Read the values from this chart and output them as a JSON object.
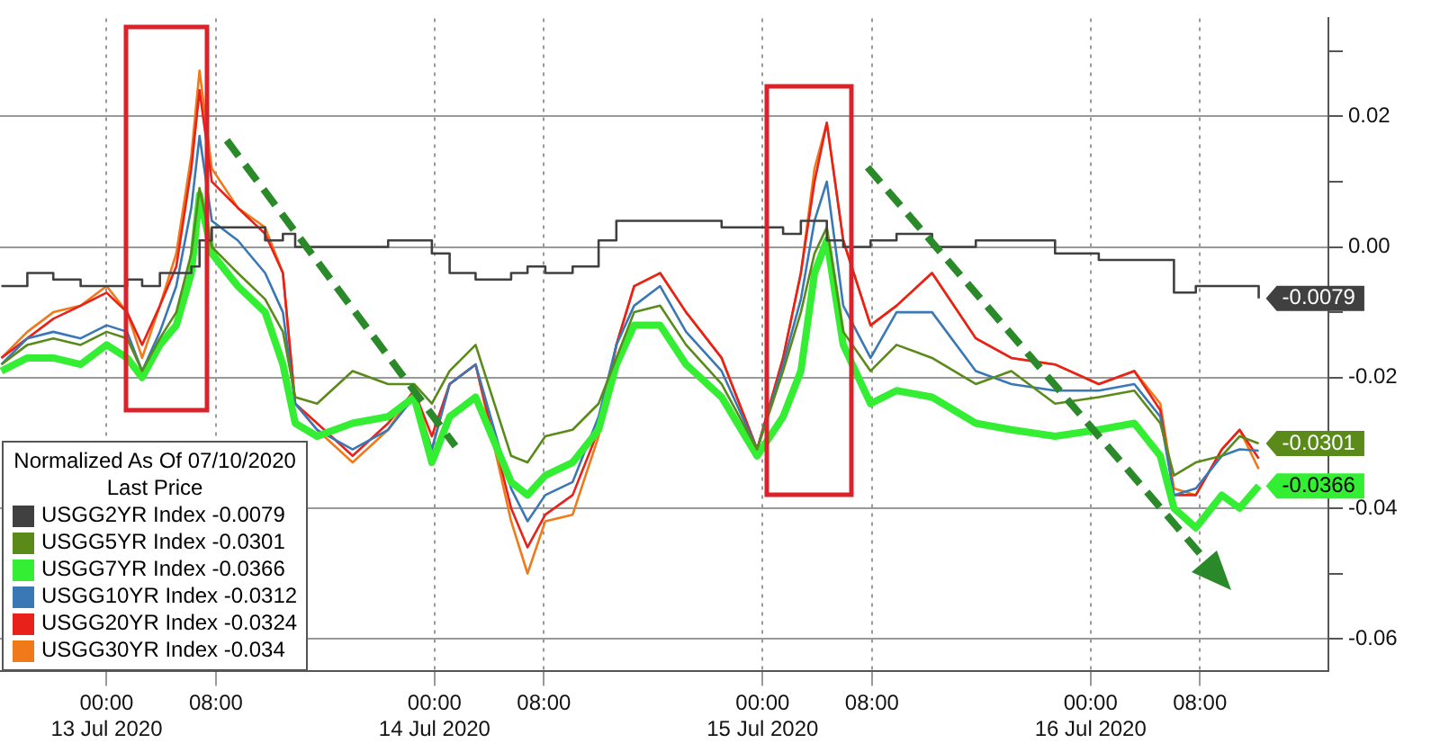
{
  "chart_data": {
    "type": "line",
    "legend_title": "Normalized As Of 07/10/2020\nLast Price",
    "x": [
      "2020-07-12T16:18",
      "2020-07-12T18:12",
      "2020-07-12T20:06",
      "2020-07-12T22:06",
      "2020-07-13T00:00",
      "2020-07-13T01:30",
      "2020-07-13T02:36",
      "2020-07-13T03:54",
      "2020-07-13T05:06",
      "2020-07-13T06:12",
      "2020-07-13T06:48",
      "2020-07-13T07:42",
      "2020-07-13T09:36",
      "2020-07-13T11:36",
      "2020-07-13T12:54",
      "2020-07-13T13:48",
      "2020-07-13T15:24",
      "2020-07-13T18:00",
      "2020-07-13T20:36",
      "2020-07-13T22:30",
      "2020-07-13T23:48",
      "2020-07-14T01:06",
      "2020-07-14T03:00",
      "2020-07-14T05:36",
      "2020-07-14T06:48",
      "2020-07-14T08:06",
      "2020-07-14T10:06",
      "2020-07-14T12:00",
      "2020-07-14T13:18",
      "2020-07-14T14:36",
      "2020-07-14T16:30",
      "2020-07-14T18:24",
      "2020-07-14T21:00",
      "2020-07-14T23:36",
      "2020-07-15T01:30",
      "2020-07-15T02:48",
      "2020-07-15T03:48",
      "2020-07-15T04:42",
      "2020-07-15T05:54",
      "2020-07-15T07:54",
      "2020-07-15T09:48",
      "2020-07-15T12:24",
      "2020-07-15T15:36",
      "2020-07-15T18:12",
      "2020-07-15T21:24",
      "2020-07-16T00:36",
      "2020-07-16T03:12",
      "2020-07-16T05:06",
      "2020-07-16T06:06",
      "2020-07-16T07:42",
      "2020-07-16T09:36",
      "2020-07-16T10:54",
      "2020-07-16T12:18"
    ],
    "series": [
      {
        "name": "USGG2YR Index -0.0079",
        "type": "step",
        "color": "#404040",
        "values": [
          -0.006,
          -0.004,
          -0.005,
          -0.006,
          -0.006,
          -0.005,
          -0.006,
          -0.004,
          -0.004,
          -0.003,
          0.001,
          0.003,
          0.003,
          0.001,
          0.002,
          0,
          0,
          0,
          0.001,
          0.001,
          -0.001,
          -0.004,
          -0.005,
          -0.004,
          -0.003,
          -0.004,
          -0.003,
          0.001,
          0.004,
          0.004,
          0.004,
          0.004,
          0.003,
          0.003,
          0.002,
          0.004,
          0.004,
          0.001,
          0,
          0.001,
          0.002,
          0,
          0.001,
          0.001,
          -0.001,
          -0.002,
          -0.002,
          -0.002,
          -0.007,
          -0.006,
          -0.006,
          -0.006,
          -0.0079
        ],
        "value_labels": [
          null,
          null,
          null,
          null,
          null,
          null,
          null,
          null,
          null,
          null,
          null,
          null,
          null,
          null,
          null,
          null,
          null,
          null,
          null,
          null,
          null,
          null,
          null,
          null,
          null,
          null,
          null,
          null,
          null,
          null,
          null,
          null,
          null,
          null,
          null,
          null,
          null,
          null,
          null,
          null,
          null,
          null,
          null,
          null,
          null,
          null,
          null,
          null,
          null,
          null,
          null,
          null,
          "-0.0079"
        ]
      },
      {
        "name": "USGG5YR Index -0.0301",
        "color": "#5a8a1a",
        "values": [
          -0.018,
          -0.015,
          -0.014,
          -0.015,
          -0.013,
          -0.014,
          -0.019,
          -0.014,
          -0.01,
          -0.001,
          0.009,
          0,
          -0.004,
          -0.008,
          -0.013,
          -0.023,
          -0.024,
          -0.019,
          -0.021,
          -0.021,
          -0.024,
          -0.019,
          -0.015,
          -0.032,
          -0.033,
          -0.029,
          -0.028,
          -0.024,
          -0.017,
          -0.01,
          -0.009,
          -0.015,
          -0.021,
          -0.031,
          -0.019,
          -0.01,
          -0.001,
          0.003,
          -0.013,
          -0.019,
          -0.015,
          -0.017,
          -0.021,
          -0.019,
          -0.024,
          -0.023,
          -0.022,
          -0.027,
          -0.035,
          -0.033,
          -0.032,
          -0.029,
          -0.0301
        ],
        "value_labels": [
          null,
          null,
          null,
          null,
          null,
          null,
          null,
          null,
          null,
          null,
          null,
          null,
          null,
          null,
          null,
          null,
          null,
          null,
          null,
          null,
          null,
          null,
          null,
          null,
          null,
          null,
          null,
          null,
          null,
          null,
          null,
          null,
          null,
          null,
          null,
          null,
          null,
          null,
          null,
          null,
          null,
          null,
          null,
          null,
          null,
          null,
          null,
          null,
          null,
          null,
          null,
          null,
          "-0.0301"
        ]
      },
      {
        "name": "USGG7YR Index -0.0366",
        "color": "#33ee33",
        "values": [
          -0.019,
          -0.017,
          -0.017,
          -0.018,
          -0.015,
          -0.017,
          -0.02,
          -0.015,
          -0.012,
          -0.004,
          0.008,
          -0.001,
          -0.006,
          -0.01,
          -0.018,
          -0.027,
          -0.029,
          -0.027,
          -0.026,
          -0.023,
          -0.033,
          -0.026,
          -0.023,
          -0.036,
          -0.038,
          -0.035,
          -0.033,
          -0.028,
          -0.018,
          -0.012,
          -0.012,
          -0.018,
          -0.023,
          -0.032,
          -0.026,
          -0.019,
          -0.004,
          0.001,
          -0.015,
          -0.024,
          -0.022,
          -0.023,
          -0.027,
          -0.028,
          -0.029,
          -0.028,
          -0.027,
          -0.032,
          -0.04,
          -0.043,
          -0.038,
          -0.04,
          -0.0366
        ],
        "value_labels": [
          null,
          null,
          null,
          null,
          null,
          null,
          null,
          null,
          null,
          null,
          null,
          null,
          null,
          null,
          null,
          null,
          null,
          null,
          null,
          null,
          null,
          null,
          null,
          null,
          null,
          null,
          null,
          null,
          null,
          null,
          null,
          null,
          null,
          null,
          null,
          null,
          null,
          null,
          null,
          null,
          null,
          null,
          null,
          null,
          null,
          null,
          null,
          null,
          null,
          null,
          null,
          null,
          "-0.0366"
        ]
      },
      {
        "name": "USGG10YR Index -0.0312",
        "color": "#3a78b5",
        "values": [
          -0.018,
          -0.014,
          -0.013,
          -0.014,
          -0.012,
          -0.013,
          -0.019,
          -0.013,
          -0.006,
          0.006,
          0.017,
          0.004,
          0.001,
          -0.004,
          -0.01,
          -0.024,
          -0.028,
          -0.031,
          -0.028,
          -0.023,
          -0.031,
          -0.021,
          -0.018,
          -0.037,
          -0.042,
          -0.038,
          -0.036,
          -0.026,
          -0.015,
          -0.009,
          -0.006,
          -0.013,
          -0.019,
          -0.031,
          -0.018,
          -0.008,
          0.004,
          0.01,
          -0.009,
          -0.017,
          -0.01,
          -0.01,
          -0.019,
          -0.021,
          -0.022,
          -0.022,
          -0.021,
          -0.026,
          -0.038,
          -0.037,
          -0.032,
          -0.031,
          -0.0312
        ]
      },
      {
        "name": "USGG20YR Index -0.0324",
        "color": "#e8211b",
        "values": [
          -0.017,
          -0.014,
          -0.011,
          -0.009,
          -0.007,
          -0.01,
          -0.015,
          -0.009,
          -0.003,
          0.012,
          0.024,
          0.01,
          0.006,
          0.002,
          -0.004,
          -0.024,
          -0.027,
          -0.032,
          -0.027,
          -0.022,
          -0.029,
          -0.021,
          -0.018,
          -0.04,
          -0.046,
          -0.041,
          -0.038,
          -0.028,
          -0.015,
          -0.006,
          -0.004,
          -0.01,
          -0.017,
          -0.031,
          -0.017,
          -0.004,
          0.01,
          0.019,
          0.001,
          -0.012,
          -0.009,
          -0.004,
          -0.014,
          -0.017,
          -0.018,
          -0.021,
          -0.019,
          -0.025,
          -0.038,
          -0.038,
          -0.031,
          -0.028,
          -0.0324
        ]
      },
      {
        "name": "USGG30YR Index -0.034",
        "color": "#f07a1a",
        "values": [
          -0.017,
          -0.013,
          -0.01,
          -0.009,
          -0.006,
          -0.01,
          -0.017,
          -0.009,
          -0.001,
          0.014,
          0.027,
          0.012,
          0.006,
          0.003,
          -0.004,
          -0.024,
          -0.028,
          -0.033,
          -0.028,
          -0.022,
          -0.031,
          -0.021,
          -0.018,
          -0.042,
          -0.05,
          -0.042,
          -0.041,
          -0.029,
          -0.015,
          -0.006,
          -0.004,
          -0.01,
          -0.017,
          -0.031,
          -0.017,
          -0.004,
          0.012,
          0.019,
          0.001,
          -0.012,
          -0.009,
          -0.004,
          -0.014,
          -0.017,
          -0.018,
          -0.021,
          -0.019,
          -0.024,
          -0.037,
          -0.038,
          -0.031,
          -0.028,
          -0.034
        ]
      }
    ],
    "xlim": [
      "2020-07-12T16:12",
      "2020-07-16T17:24"
    ],
    "xticks": [
      {
        "value": "2020-07-13T00:00",
        "label": "00:00\n13 Jul 2020"
      },
      {
        "value": "2020-07-13T08:00",
        "label": "08:00"
      },
      {
        "value": "2020-07-14T00:00",
        "label": "00:00\n14 Jul 2020"
      },
      {
        "value": "2020-07-14T08:00",
        "label": "08:00"
      },
      {
        "value": "2020-07-15T00:00",
        "label": "00:00\n15 Jul 2020"
      },
      {
        "value": "2020-07-15T08:00",
        "label": "08:00"
      },
      {
        "value": "2020-07-16T00:00",
        "label": "00:00\n16 Jul 2020"
      },
      {
        "value": "2020-07-16T08:00",
        "label": "08:00"
      }
    ],
    "ylim": [
      -0.065,
      0.035
    ],
    "yticks": [
      {
        "value": -0.06,
        "label": "-0.06"
      },
      {
        "value": -0.05,
        "label": null
      },
      {
        "value": -0.04,
        "label": "-0.04"
      },
      {
        "value": -0.03,
        "label": null
      },
      {
        "value": -0.02,
        "label": "-0.02"
      },
      {
        "value": -0.01,
        "label": null
      },
      {
        "value": 0,
        "label": "0.00"
      },
      {
        "value": 0.01,
        "label": null
      },
      {
        "value": 0.02,
        "label": "0.02"
      },
      {
        "value": 0.03,
        "label": null
      }
    ],
    "grid": true,
    "legend": "bottom left",
    "marker": "none",
    "line_style": "solid"
  }
}
